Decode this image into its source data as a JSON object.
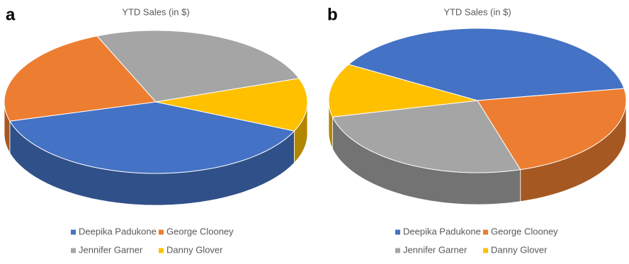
{
  "chart_data": [
    {
      "type": "pie3d",
      "label": "a",
      "title": "YTD Sales (in $)",
      "categories": [
        "Deepika Padukone",
        "George Clooney",
        "Jennifer Garner",
        "Danny Glover"
      ],
      "values": [
        39,
        23,
        26,
        12
      ],
      "colors": [
        "#4472c4",
        "#ed7d31",
        "#a5a5a5",
        "#ffc000"
      ],
      "startangle": -24
    },
    {
      "type": "pie3d",
      "label": "b",
      "title": "YTD Sales (in $)",
      "categories": [
        "Deepika Padukone",
        "George Clooney",
        "Jennifer Garner",
        "Danny Glover"
      ],
      "values": [
        39,
        23,
        26,
        12
      ],
      "colors": [
        "#4472c4",
        "#ed7d31",
        "#a5a5a5",
        "#ffc000"
      ],
      "startangle": 150
    }
  ]
}
